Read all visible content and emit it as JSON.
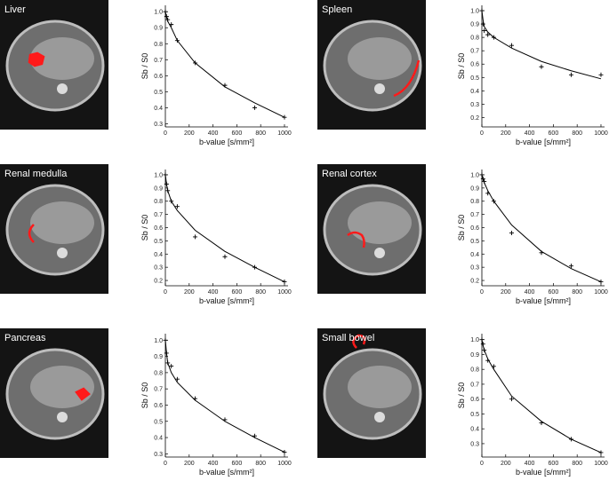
{
  "chart_data": [
    {
      "type": "scatter",
      "title": "Liver",
      "xlabel": "b-value [s/mm²]",
      "ylabel": "Sb / S0",
      "xlim": [
        0,
        1030
      ],
      "xticks": [
        0,
        200,
        400,
        600,
        800,
        1000
      ],
      "ylim": [
        0.28,
        1.04
      ],
      "yticks": [
        0.3,
        0.4,
        0.5,
        0.6,
        0.7,
        0.8,
        0.9,
        {
          "value": 1,
          "label": "1.0"
        }
      ],
      "series": [
        {
          "kind": "markers",
          "color": "#000000",
          "x": [
            0,
            10,
            20,
            50,
            100,
            250,
            500,
            750,
            1000
          ],
          "values": [
            1.0,
            0.97,
            0.95,
            0.92,
            0.82,
            0.68,
            0.54,
            0.4,
            0.34
          ]
        },
        {
          "kind": "line",
          "color": "#000000",
          "x": [
            0,
            10,
            20,
            50,
            100,
            250,
            500,
            750,
            1000
          ],
          "values": [
            1.0,
            0.97,
            0.94,
            0.9,
            0.82,
            0.68,
            0.53,
            0.43,
            0.34
          ]
        }
      ]
    },
    {
      "type": "scatter",
      "title": "Spleen",
      "xlabel": "b-value [s/mm²]",
      "ylabel": "Sb / S0",
      "xlim": [
        0,
        1030
      ],
      "xticks": [
        0,
        200,
        400,
        600,
        800,
        1000
      ],
      "ylim": [
        0.13,
        1.04
      ],
      "yticks": [
        0.2,
        0.3,
        0.4,
        0.5,
        0.6,
        0.7,
        0.8,
        0.9,
        {
          "value": 1,
          "label": "1.0"
        }
      ],
      "series": [
        {
          "kind": "markers",
          "color": "#000000",
          "x": [
            0,
            10,
            20,
            50,
            100,
            250,
            500,
            750,
            1000
          ],
          "values": [
            1.0,
            0.9,
            0.85,
            0.82,
            0.8,
            0.74,
            0.58,
            0.52,
            0.52
          ]
        },
        {
          "kind": "line",
          "color": "#000000",
          "x": [
            0,
            10,
            20,
            50,
            100,
            250,
            500,
            750,
            1000
          ],
          "values": [
            1.0,
            0.93,
            0.88,
            0.84,
            0.8,
            0.72,
            0.62,
            0.55,
            0.49
          ]
        }
      ]
    },
    {
      "type": "scatter",
      "title": "Renal medulla",
      "xlabel": "b-value [s/mm²]",
      "ylabel": "Sb / S0",
      "xlim": [
        0,
        1030
      ],
      "xticks": [
        0,
        200,
        400,
        600,
        800,
        1000
      ],
      "ylim": [
        0.16,
        1.04
      ],
      "yticks": [
        0.2,
        0.3,
        0.4,
        0.5,
        0.6,
        0.7,
        0.8,
        0.9,
        {
          "value": 1,
          "label": "1.0"
        }
      ],
      "series": [
        {
          "kind": "markers",
          "color": "#000000",
          "x": [
            0,
            10,
            20,
            50,
            100,
            250,
            500,
            750,
            1000
          ],
          "values": [
            1.0,
            0.93,
            0.88,
            0.8,
            0.76,
            0.53,
            0.38,
            0.3,
            0.19
          ]
        },
        {
          "kind": "line",
          "color": "#000000",
          "x": [
            0,
            10,
            20,
            50,
            100,
            250,
            500,
            750,
            1000
          ],
          "values": [
            1.0,
            0.93,
            0.88,
            0.8,
            0.73,
            0.58,
            0.42,
            0.3,
            0.19
          ]
        }
      ]
    },
    {
      "type": "scatter",
      "title": "Renal cortex",
      "xlabel": "b-value [s/mm²]",
      "ylabel": "Sb / S0",
      "xlim": [
        0,
        1030
      ],
      "xticks": [
        0,
        200,
        400,
        600,
        800,
        1000
      ],
      "ylim": [
        0.16,
        1.04
      ],
      "yticks": [
        0.2,
        0.3,
        0.4,
        0.5,
        0.6,
        0.7,
        0.8,
        0.9,
        {
          "value": 1,
          "label": "1.0"
        }
      ],
      "series": [
        {
          "kind": "markers",
          "color": "#000000",
          "x": [
            0,
            10,
            20,
            50,
            100,
            250,
            500,
            750,
            1000
          ],
          "values": [
            1.0,
            0.97,
            0.95,
            0.86,
            0.8,
            0.56,
            0.41,
            0.31,
            0.19
          ]
        },
        {
          "kind": "line",
          "color": "#000000",
          "x": [
            0,
            10,
            20,
            50,
            100,
            250,
            500,
            750,
            1000
          ],
          "values": [
            1.0,
            0.97,
            0.94,
            0.88,
            0.8,
            0.62,
            0.42,
            0.29,
            0.19
          ]
        }
      ]
    },
    {
      "type": "scatter",
      "title": "Pancreas",
      "xlabel": "b-value [s/mm²]",
      "ylabel": "Sb / S0",
      "xlim": [
        0,
        1030
      ],
      "xticks": [
        0,
        200,
        400,
        600,
        800,
        1000
      ],
      "ylim": [
        0.28,
        1.04
      ],
      "yticks": [
        0.3,
        0.4,
        0.5,
        0.6,
        0.7,
        0.8,
        0.9,
        {
          "value": 1,
          "label": "1.0"
        }
      ],
      "series": [
        {
          "kind": "markers",
          "color": "#000000",
          "x": [
            0,
            10,
            20,
            50,
            100,
            250,
            500,
            750,
            1000
          ],
          "values": [
            1.0,
            0.92,
            0.86,
            0.84,
            0.76,
            0.64,
            0.51,
            0.41,
            0.31
          ]
        },
        {
          "kind": "line",
          "color": "#000000",
          "x": [
            0,
            10,
            20,
            50,
            100,
            250,
            500,
            750,
            1000
          ],
          "values": [
            1.0,
            0.92,
            0.86,
            0.8,
            0.74,
            0.63,
            0.5,
            0.4,
            0.31
          ]
        }
      ]
    },
    {
      "type": "scatter",
      "title": "Small bowel",
      "xlabel": "b-value [s/mm²]",
      "ylabel": "Sb / S0",
      "xlim": [
        0,
        1030
      ],
      "xticks": [
        0,
        200,
        400,
        600,
        800,
        1000
      ],
      "ylim": [
        0.21,
        1.04
      ],
      "yticks": [
        0.3,
        0.4,
        0.5,
        0.6,
        0.7,
        0.8,
        0.9,
        {
          "value": 1,
          "label": "1.0"
        }
      ],
      "series": [
        {
          "kind": "markers",
          "color": "#000000",
          "x": [
            0,
            10,
            20,
            50,
            100,
            250,
            500,
            750,
            1000
          ],
          "values": [
            1.0,
            0.97,
            0.93,
            0.86,
            0.82,
            0.6,
            0.44,
            0.33,
            0.24
          ]
        },
        {
          "kind": "line",
          "color": "#000000",
          "x": [
            0,
            10,
            20,
            50,
            100,
            250,
            500,
            750,
            1000
          ],
          "values": [
            1.0,
            0.96,
            0.93,
            0.87,
            0.8,
            0.62,
            0.45,
            0.33,
            0.24
          ]
        }
      ]
    }
  ]
}
